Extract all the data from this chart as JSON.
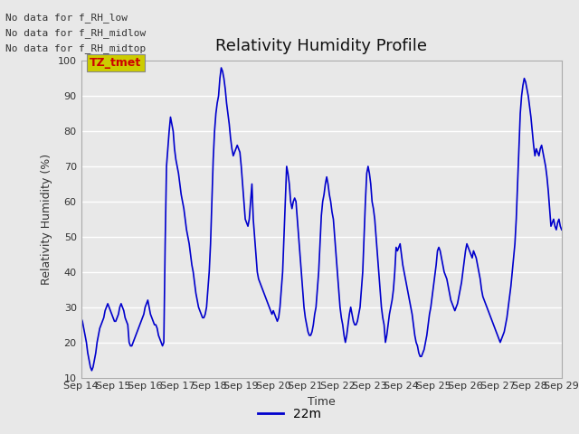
{
  "title": "Relativity Humidity Profile",
  "xlabel": "Time",
  "ylabel": "Relativity Humidity (%)",
  "ylim": [
    10,
    100
  ],
  "xlim": [
    0,
    360
  ],
  "line_color": "#0000CC",
  "line_label": "22m",
  "bg_color": "#E8E8E8",
  "plot_bg_color": "#E8E8E8",
  "annotations": [
    "No data for f_RH_low",
    "No data for f_RH_midlow",
    "No data for f_RH_midtop"
  ],
  "annotation_color": "#333333",
  "tz_label": "TZ_tmet",
  "tz_color": "#CC0000",
  "tz_bg": "#CCCC00",
  "x_tick_labels": [
    "Sep 14",
    "Sep 15",
    "Sep 16",
    "Sep 17",
    "Sep 18",
    "Sep 19",
    "Sep 20",
    "Sep 21",
    "Sep 22",
    "Sep 23",
    "Sep 24",
    "Sep 25",
    "Sep 26",
    "Sep 27",
    "Sep 28",
    "Sep 29"
  ],
  "x_ticks": [
    0,
    24,
    48,
    72,
    96,
    120,
    144,
    168,
    192,
    216,
    240,
    264,
    288,
    312,
    336,
    360
  ],
  "yticks": [
    10,
    20,
    30,
    40,
    50,
    60,
    70,
    80,
    90,
    100
  ],
  "data_hours": [
    0,
    1,
    2,
    3,
    4,
    5,
    6,
    7,
    8,
    9,
    10,
    11,
    12,
    13,
    14,
    15,
    16,
    17,
    18,
    19,
    20,
    21,
    22,
    23,
    24,
    25,
    26,
    27,
    28,
    29,
    30,
    31,
    32,
    33,
    34,
    35,
    36,
    37,
    38,
    39,
    40,
    41,
    42,
    43,
    44,
    45,
    46,
    47,
    48,
    49,
    50,
    51,
    52,
    53,
    54,
    55,
    56,
    57,
    58,
    59,
    60,
    61,
    62,
    63,
    64,
    65,
    66,
    67,
    68,
    69,
    70,
    71,
    72,
    73,
    74,
    75,
    76,
    77,
    78,
    79,
    80,
    81,
    82,
    83,
    84,
    85,
    86,
    87,
    88,
    89,
    90,
    91,
    92,
    93,
    94,
    95,
    96,
    97,
    98,
    99,
    100,
    101,
    102,
    103,
    104,
    105,
    106,
    107,
    108,
    109,
    110,
    111,
    112,
    113,
    114,
    115,
    116,
    117,
    118,
    119,
    120,
    121,
    122,
    123,
    124,
    125,
    126,
    127,
    128,
    129,
    130,
    131,
    132,
    133,
    134,
    135,
    136,
    137,
    138,
    139,
    140,
    141,
    142,
    143,
    144,
    145,
    146,
    147,
    148,
    149,
    150,
    151,
    152,
    153,
    154,
    155,
    156,
    157,
    158,
    159,
    160,
    161,
    162,
    163,
    164,
    165,
    166,
    167,
    168,
    169,
    170,
    171,
    172,
    173,
    174,
    175,
    176,
    177,
    178,
    179,
    180,
    181,
    182,
    183,
    184,
    185,
    186,
    187,
    188,
    189,
    190,
    191,
    192,
    193,
    194,
    195,
    196,
    197,
    198,
    199,
    200,
    201,
    202,
    203,
    204,
    205,
    206,
    207,
    208,
    209,
    210,
    211,
    212,
    213,
    214,
    215,
    216,
    217,
    218,
    219,
    220,
    221,
    222,
    223,
    224,
    225,
    226,
    227,
    228,
    229,
    230,
    231,
    232,
    233,
    234,
    235,
    236,
    237,
    238,
    239,
    240,
    241,
    242,
    243,
    244,
    245,
    246,
    247,
    248,
    249,
    250,
    251,
    252,
    253,
    254,
    255,
    256,
    257,
    258,
    259,
    260,
    261,
    262,
    263,
    264,
    265,
    266,
    267,
    268,
    269,
    270,
    271,
    272,
    273,
    274,
    275,
    276,
    277,
    278,
    279,
    280,
    281,
    282,
    283,
    284,
    285,
    286,
    287,
    288,
    289,
    290,
    291,
    292,
    293,
    294,
    295,
    296,
    297,
    298,
    299,
    300,
    301,
    302,
    303,
    304,
    305,
    306,
    307,
    308,
    309,
    310,
    311,
    312,
    313,
    314,
    315,
    316,
    317,
    318,
    319,
    320,
    321,
    322,
    323,
    324,
    325,
    326,
    327,
    328,
    329,
    330,
    331,
    332,
    333,
    334,
    335,
    336,
    337,
    338,
    339,
    340,
    341,
    342,
    343,
    344,
    345,
    346,
    347,
    348,
    349,
    350,
    351,
    352,
    353,
    354,
    355,
    356,
    357,
    358,
    359,
    360
  ],
  "data_rh": [
    27,
    26,
    24,
    22,
    20,
    17,
    15,
    13,
    12,
    13,
    15,
    17,
    20,
    22,
    24,
    25,
    26,
    27,
    29,
    30,
    31,
    30,
    29,
    28,
    27,
    26,
    26,
    27,
    28,
    30,
    31,
    30,
    29,
    27,
    26,
    25,
    20,
    19,
    19,
    20,
    21,
    22,
    23,
    24,
    25,
    26,
    27,
    28,
    30,
    31,
    32,
    30,
    28,
    27,
    26,
    25,
    25,
    24,
    22,
    21,
    20,
    19,
    20,
    48,
    70,
    75,
    80,
    84,
    82,
    80,
    75,
    72,
    70,
    68,
    65,
    62,
    60,
    58,
    55,
    52,
    50,
    48,
    45,
    42,
    40,
    37,
    34,
    32,
    30,
    29,
    28,
    27,
    27,
    28,
    30,
    35,
    40,
    48,
    60,
    72,
    80,
    85,
    88,
    90,
    95,
    98,
    97,
    95,
    92,
    88,
    85,
    82,
    78,
    75,
    73,
    74,
    75,
    76,
    75,
    74,
    70,
    65,
    60,
    55,
    54,
    53,
    55,
    60,
    65,
    55,
    50,
    45,
    40,
    38,
    37,
    36,
    35,
    34,
    33,
    32,
    31,
    30,
    29,
    28,
    29,
    28,
    27,
    26,
    27,
    30,
    35,
    40,
    50,
    60,
    70,
    68,
    65,
    60,
    58,
    60,
    61,
    60,
    55,
    50,
    45,
    40,
    35,
    30,
    27,
    25,
    23,
    22,
    22,
    23,
    25,
    28,
    30,
    35,
    40,
    48,
    56,
    60,
    62,
    65,
    67,
    65,
    62,
    60,
    57,
    55,
    50,
    45,
    40,
    35,
    30,
    27,
    25,
    22,
    20,
    22,
    25,
    28,
    30,
    28,
    26,
    25,
    25,
    26,
    28,
    30,
    35,
    40,
    50,
    60,
    68,
    70,
    68,
    65,
    60,
    58,
    55,
    50,
    45,
    40,
    35,
    30,
    27,
    25,
    20,
    22,
    25,
    28,
    30,
    32,
    35,
    40,
    47,
    46,
    47,
    48,
    45,
    42,
    40,
    38,
    36,
    34,
    32,
    30,
    28,
    25,
    22,
    20,
    19,
    17,
    16,
    16,
    17,
    18,
    20,
    22,
    25,
    28,
    30,
    33,
    36,
    39,
    42,
    46,
    47,
    46,
    44,
    42,
    40,
    39,
    38,
    36,
    34,
    32,
    31,
    30,
    29,
    30,
    31,
    33,
    35,
    37,
    40,
    43,
    46,
    48,
    47,
    46,
    45,
    44,
    46,
    45,
    44,
    42,
    40,
    38,
    35,
    33,
    32,
    31,
    30,
    29,
    28,
    27,
    26,
    25,
    24,
    23,
    22,
    21,
    20,
    21,
    22,
    23,
    25,
    27,
    30,
    33,
    36,
    40,
    44,
    48,
    55,
    65,
    75,
    85,
    90,
    93,
    95,
    94,
    92,
    90,
    87,
    84,
    80,
    76,
    73,
    75,
    74,
    73,
    75,
    76,
    74,
    72,
    70,
    67,
    63,
    58,
    53,
    54,
    55,
    53,
    52,
    54,
    55,
    53,
    52
  ]
}
